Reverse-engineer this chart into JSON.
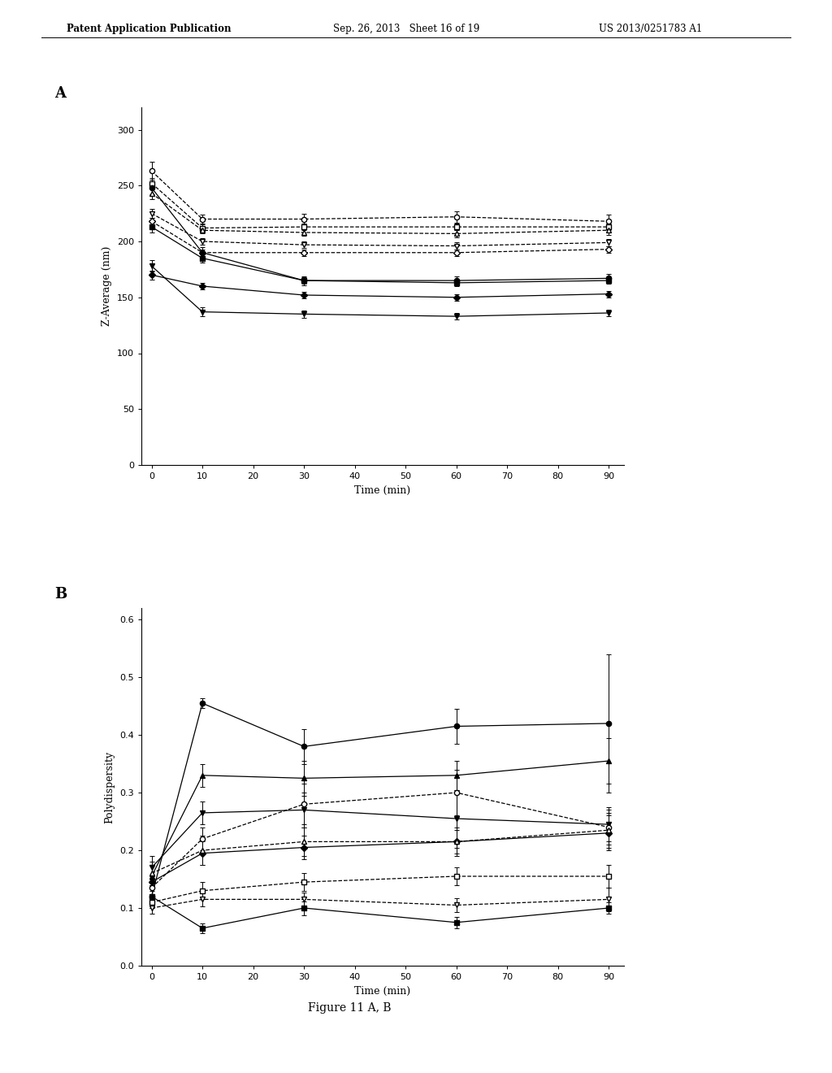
{
  "header_left": "Patent Application Publication",
  "header_center": "Sep. 26, 2013   Sheet 16 of 19",
  "header_right": "US 2013/0251783 A1",
  "footer": "Figure 11 A, B",
  "plot_A": {
    "label": "A",
    "xlabel": "Time (min)",
    "ylabel": "Z-Average (nm)",
    "xlim": [
      -2,
      93
    ],
    "ylim": [
      0,
      320
    ],
    "yticks": [
      0,
      50,
      100,
      150,
      200,
      250,
      300
    ],
    "xticks": [
      0,
      10,
      20,
      30,
      40,
      50,
      60,
      70,
      80,
      90
    ],
    "series": [
      {
        "x": [
          0,
          10,
          30,
          60,
          90
        ],
        "y": [
          263,
          220,
          220,
          222,
          218
        ],
        "yerr": [
          8,
          4,
          5,
          5,
          6
        ],
        "style": "dashed",
        "marker": "o",
        "filled": false
      },
      {
        "x": [
          0,
          10,
          30,
          60,
          90
        ],
        "y": [
          252,
          212,
          213,
          213,
          213
        ],
        "yerr": [
          5,
          3,
          3,
          3,
          3
        ],
        "style": "dashed",
        "marker": "s",
        "filled": false
      },
      {
        "x": [
          0,
          10,
          30,
          60,
          90
        ],
        "y": [
          243,
          210,
          208,
          207,
          210
        ],
        "yerr": [
          5,
          3,
          3,
          3,
          4
        ],
        "style": "dashed",
        "marker": "^",
        "filled": false
      },
      {
        "x": [
          0,
          10,
          30,
          60,
          90
        ],
        "y": [
          225,
          200,
          197,
          196,
          199
        ],
        "yerr": [
          4,
          3,
          3,
          3,
          3
        ],
        "style": "dashed",
        "marker": "v",
        "filled": false
      },
      {
        "x": [
          0,
          10,
          30,
          60,
          90
        ],
        "y": [
          218,
          190,
          190,
          190,
          193
        ],
        "yerr": [
          3,
          3,
          3,
          3,
          3
        ],
        "style": "dashed",
        "marker": "D",
        "filled": false
      },
      {
        "x": [
          0,
          10,
          30,
          60,
          90
        ],
        "y": [
          248,
          190,
          165,
          165,
          167
        ],
        "yerr": [
          6,
          5,
          4,
          4,
          4
        ],
        "style": "solid",
        "marker": "o",
        "filled": true
      },
      {
        "x": [
          0,
          10,
          30,
          60,
          90
        ],
        "y": [
          213,
          185,
          165,
          163,
          165
        ],
        "yerr": [
          5,
          4,
          3,
          3,
          3
        ],
        "style": "solid",
        "marker": "s",
        "filled": true
      },
      {
        "x": [
          0,
          10,
          30,
          60,
          90
        ],
        "y": [
          170,
          160,
          152,
          150,
          153
        ],
        "yerr": [
          4,
          3,
          3,
          3,
          3
        ],
        "style": "solid",
        "marker": "D",
        "filled": true
      },
      {
        "x": [
          0,
          10,
          30,
          60,
          90
        ],
        "y": [
          178,
          137,
          135,
          133,
          136
        ],
        "yerr": [
          5,
          4,
          3,
          3,
          3
        ],
        "style": "solid",
        "marker": "v",
        "filled": true
      }
    ]
  },
  "plot_B": {
    "label": "B",
    "xlabel": "Time (min)",
    "ylabel": "Polydispersity",
    "xlim": [
      -2,
      93
    ],
    "ylim": [
      0.0,
      0.62
    ],
    "yticks": [
      0.0,
      0.1,
      0.2,
      0.3,
      0.4,
      0.5,
      0.6
    ],
    "xticks": [
      0,
      10,
      20,
      30,
      40,
      50,
      60,
      70,
      80,
      90
    ],
    "series": [
      {
        "x": [
          0,
          10,
          30,
          60,
          90
        ],
        "y": [
          0.12,
          0.455,
          0.38,
          0.415,
          0.42
        ],
        "yerr": [
          0.02,
          0.008,
          0.03,
          0.03,
          0.12
        ],
        "style": "solid",
        "marker": "o",
        "filled": true
      },
      {
        "x": [
          0,
          10,
          30,
          60,
          90
        ],
        "y": [
          0.155,
          0.33,
          0.325,
          0.33,
          0.355
        ],
        "yerr": [
          0.02,
          0.02,
          0.03,
          0.025,
          0.04
        ],
        "style": "solid",
        "marker": "^",
        "filled": true
      },
      {
        "x": [
          0,
          10,
          30,
          60,
          90
        ],
        "y": [
          0.17,
          0.265,
          0.27,
          0.255,
          0.245
        ],
        "yerr": [
          0.02,
          0.02,
          0.03,
          0.05,
          0.03
        ],
        "style": "solid",
        "marker": "v",
        "filled": true
      },
      {
        "x": [
          0,
          10,
          30,
          60,
          90
        ],
        "y": [
          0.145,
          0.195,
          0.205,
          0.215,
          0.23
        ],
        "yerr": [
          0.01,
          0.02,
          0.02,
          0.025,
          0.03
        ],
        "style": "solid",
        "marker": "D",
        "filled": true
      },
      {
        "x": [
          0,
          10,
          30,
          60,
          90
        ],
        "y": [
          0.12,
          0.065,
          0.1,
          0.075,
          0.1
        ],
        "yerr": [
          0.01,
          0.008,
          0.012,
          0.01,
          0.01
        ],
        "style": "solid",
        "marker": "s",
        "filled": true
      },
      {
        "x": [
          0,
          10,
          30,
          60,
          90
        ],
        "y": [
          0.135,
          0.22,
          0.28,
          0.3,
          0.24
        ],
        "yerr": [
          0.02,
          0.02,
          0.035,
          0.04,
          0.03
        ],
        "style": "dashed",
        "marker": "o",
        "filled": false
      },
      {
        "x": [
          0,
          10,
          30,
          60,
          90
        ],
        "y": [
          0.16,
          0.2,
          0.215,
          0.215,
          0.235
        ],
        "yerr": [
          0.02,
          0.025,
          0.025,
          0.02,
          0.03
        ],
        "style": "dashed",
        "marker": "^",
        "filled": false
      },
      {
        "x": [
          0,
          10,
          30,
          60,
          90
        ],
        "y": [
          0.11,
          0.13,
          0.145,
          0.155,
          0.155
        ],
        "yerr": [
          0.01,
          0.015,
          0.015,
          0.015,
          0.02
        ],
        "style": "dashed",
        "marker": "s",
        "filled": false
      },
      {
        "x": [
          0,
          10,
          30,
          60,
          90
        ],
        "y": [
          0.1,
          0.115,
          0.115,
          0.105,
          0.115
        ],
        "yerr": [
          0.01,
          0.012,
          0.012,
          0.012,
          0.02
        ],
        "style": "dashed",
        "marker": "v",
        "filled": false
      }
    ]
  },
  "bg_color": "#ffffff",
  "line_color": "#000000"
}
